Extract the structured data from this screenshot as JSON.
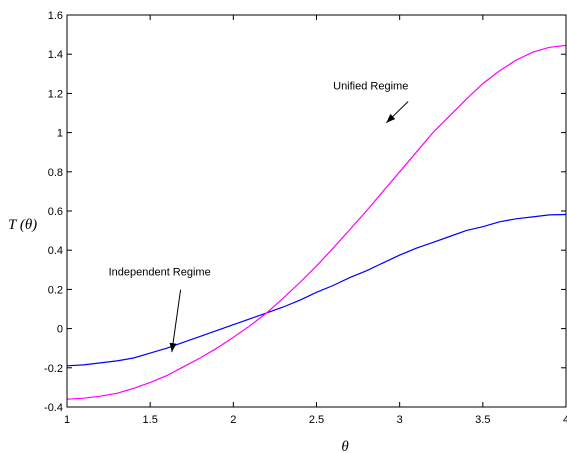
{
  "chart_data": {
    "type": "line",
    "title": "",
    "xlabel": "θ",
    "ylabel": "T (θ)",
    "xlim": [
      1,
      4
    ],
    "ylim": [
      -0.4,
      1.6
    ],
    "xticks": [
      1,
      1.5,
      2,
      2.5,
      3,
      3.5,
      4
    ],
    "xtick_labels": [
      "1",
      "1.5",
      "2",
      "2.5",
      "3",
      "3.5",
      "4"
    ],
    "yticks": [
      -0.4,
      -0.2,
      0,
      0.2,
      0.4,
      0.6,
      0.8,
      1,
      1.2,
      1.4,
      1.6
    ],
    "ytick_labels": [
      "-0.4",
      "-0.2",
      "0",
      "0.2",
      "0.4",
      "0.6",
      "0.8",
      "1",
      "1.2",
      "1.4",
      "1.6"
    ],
    "grid": false,
    "legend": "none",
    "series": [
      {
        "color": "#0000ff",
        "x": [
          1,
          1.1,
          1.2,
          1.3,
          1.4,
          1.5,
          1.6,
          1.7,
          1.8,
          1.9,
          2,
          2.1,
          2.2,
          2.3,
          2.4,
          2.5,
          2.6,
          2.7,
          2.8,
          2.9,
          3,
          3.1,
          3.2,
          3.3,
          3.4,
          3.5,
          3.6,
          3.7,
          3.8,
          3.9,
          4
        ],
        "y": [
          -0.19,
          -0.185,
          -0.175,
          -0.165,
          -0.15,
          -0.125,
          -0.1,
          -0.07,
          -0.04,
          -0.01,
          0.02,
          0.05,
          0.08,
          0.11,
          0.145,
          0.185,
          0.22,
          0.26,
          0.295,
          0.335,
          0.375,
          0.41,
          0.44,
          0.47,
          0.5,
          0.52,
          0.545,
          0.56,
          0.57,
          0.58,
          0.582
        ]
      },
      {
        "color": "#ff00ff",
        "x": [
          1,
          1.1,
          1.2,
          1.3,
          1.4,
          1.5,
          1.6,
          1.7,
          1.8,
          1.9,
          2,
          2.1,
          2.2,
          2.3,
          2.4,
          2.5,
          2.6,
          2.7,
          2.8,
          2.9,
          3,
          3.1,
          3.2,
          3.3,
          3.4,
          3.5,
          3.6,
          3.7,
          3.8,
          3.9,
          4
        ],
        "y": [
          -0.36,
          -0.355,
          -0.345,
          -0.33,
          -0.305,
          -0.275,
          -0.24,
          -0.195,
          -0.15,
          -0.1,
          -0.045,
          0.015,
          0.08,
          0.155,
          0.235,
          0.32,
          0.41,
          0.505,
          0.6,
          0.7,
          0.8,
          0.9,
          1.0,
          1.085,
          1.17,
          1.25,
          1.315,
          1.37,
          1.41,
          1.435,
          1.445
        ]
      }
    ],
    "annotations": [
      {
        "text": "Unified Regime",
        "x": 2.6,
        "y": 1.22,
        "arrow_to": [
          2.92,
          1.05
        ]
      },
      {
        "text": "Independent Regime",
        "x": 1.25,
        "y": 0.27,
        "arrow_to": [
          1.63,
          -0.12
        ]
      }
    ]
  }
}
